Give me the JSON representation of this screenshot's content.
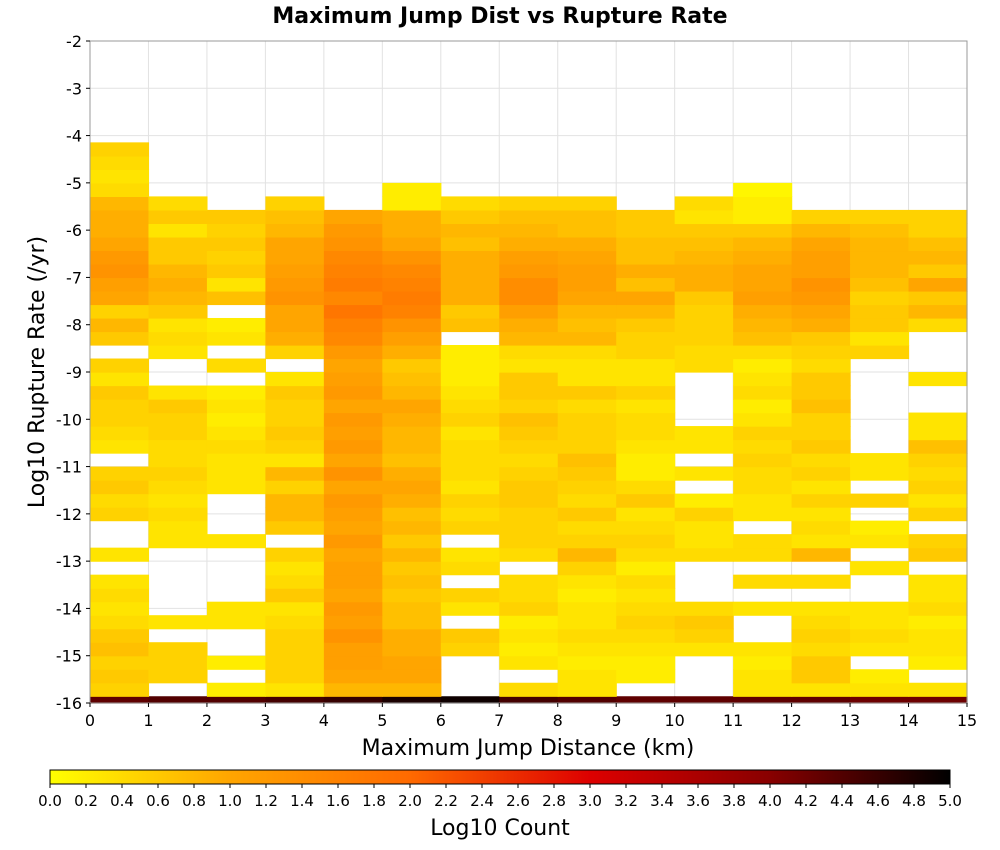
{
  "chart_data": {
    "type": "heatmap",
    "title": "Maximum Jump Dist vs Rupture Rate",
    "xlabel": "Maximum Jump Distance (km)",
    "ylabel": "Log10 Rupture Rate (/yr)",
    "colorbar_label": "Log10 Count",
    "xlim": [
      0,
      15
    ],
    "ylim": [
      -16,
      -2
    ],
    "x_ticks": [
      0,
      1,
      2,
      3,
      4,
      5,
      6,
      7,
      8,
      9,
      10,
      11,
      12,
      13,
      14,
      15
    ],
    "y_ticks": [
      -16,
      -15,
      -14,
      -13,
      -12,
      -11,
      -10,
      -9,
      -8,
      -7,
      -6,
      -5,
      -4,
      -3,
      -2
    ],
    "colorbar_range": [
      0.0,
      5.0
    ],
    "colorbar_ticks": [
      "0.0",
      "0.2",
      "0.4",
      "0.6",
      "0.8",
      "1.0",
      "1.2",
      "1.4",
      "1.6",
      "1.8",
      "2.0",
      "2.2",
      "2.4",
      "2.6",
      "2.8",
      "3.0",
      "3.2",
      "3.4",
      "3.6",
      "3.8",
      "4.0",
      "4.2",
      "4.4",
      "4.6",
      "4.8",
      "5.0"
    ],
    "colormap": [
      "#ffff00",
      "#ffa500",
      "#ff6a00",
      "#dd0000",
      "#880000",
      "#000000"
    ],
    "grid": true,
    "x_bin_width": 1,
    "y_bin_height": 0.2857,
    "y_bin_start": -16.1429,
    "cell_rows_note": "rows ordered from bottom (y=-16) upward; columns x=0..14",
    "cells": [
      [
        4.3,
        4.4,
        4.4,
        4.5,
        4.6,
        4.8,
        4.9,
        4.5,
        4.4,
        4.3,
        4.3,
        4.3,
        4.3,
        4.2,
        4.2
      ],
      [
        0.5,
        null,
        0.2,
        0.3,
        0.8,
        0.8,
        null,
        0.4,
        0.3,
        null,
        null,
        0.3,
        0.3,
        0.3,
        0.3
      ],
      [
        0.6,
        0.5,
        null,
        0.5,
        1.0,
        1.0,
        null,
        null,
        0.3,
        0.2,
        null,
        0.3,
        0.6,
        0.2,
        null
      ],
      [
        0.5,
        0.5,
        0.2,
        0.5,
        1.1,
        1.0,
        null,
        0.3,
        0.2,
        0.2,
        null,
        0.2,
        0.6,
        null,
        0.2
      ],
      [
        0.7,
        0.5,
        null,
        0.5,
        1.1,
        0.9,
        0.5,
        0.2,
        0.3,
        0.3,
        0.3,
        0.3,
        0.4,
        0.3,
        0.3
      ],
      [
        0.6,
        null,
        null,
        0.5,
        1.3,
        0.9,
        0.6,
        0.3,
        0.4,
        0.4,
        0.5,
        null,
        0.5,
        0.4,
        0.3
      ],
      [
        0.4,
        0.3,
        0.3,
        0.4,
        1.1,
        0.7,
        null,
        0.2,
        0.3,
        0.5,
        0.6,
        null,
        0.4,
        0.3,
        0.2
      ],
      [
        0.3,
        null,
        0.3,
        0.3,
        1.2,
        0.7,
        0.3,
        0.5,
        0.3,
        0.4,
        0.4,
        0.3,
        0.3,
        0.3,
        0.4
      ],
      [
        0.4,
        null,
        null,
        0.6,
        1.0,
        0.6,
        0.5,
        0.4,
        0.2,
        0.3,
        null,
        null,
        null,
        null,
        0.3
      ],
      [
        0.3,
        null,
        null,
        0.4,
        1.1,
        0.7,
        null,
        0.4,
        0.3,
        0.4,
        null,
        0.4,
        0.4,
        null,
        0.3
      ],
      [
        null,
        null,
        null,
        0.3,
        1.1,
        0.6,
        0.4,
        null,
        0.5,
        0.2,
        null,
        null,
        null,
        0.3,
        null
      ],
      [
        0.3,
        null,
        null,
        0.5,
        1.0,
        0.8,
        0.3,
        0.4,
        0.8,
        0.4,
        0.4,
        0.4,
        0.8,
        null,
        0.6
      ],
      [
        null,
        0.3,
        0.3,
        null,
        1.2,
        0.6,
        null,
        0.5,
        0.5,
        0.5,
        0.3,
        0.4,
        0.3,
        0.3,
        0.5
      ],
      [
        null,
        0.3,
        null,
        0.6,
        1.0,
        0.8,
        0.5,
        0.5,
        0.4,
        0.4,
        0.3,
        null,
        0.4,
        0.2,
        null
      ],
      [
        0.5,
        0.4,
        null,
        0.8,
        1.1,
        0.7,
        0.4,
        0.5,
        0.6,
        0.3,
        0.5,
        0.3,
        0.3,
        null,
        0.5
      ],
      [
        0.4,
        0.3,
        null,
        0.8,
        1.2,
        0.9,
        0.5,
        0.6,
        0.4,
        0.6,
        0.2,
        0.3,
        0.5,
        0.5,
        0.3
      ],
      [
        0.6,
        0.4,
        0.3,
        0.5,
        1.0,
        1.0,
        0.3,
        0.6,
        0.5,
        0.4,
        null,
        0.4,
        0.3,
        null,
        0.5
      ],
      [
        0.5,
        0.5,
        0.3,
        0.8,
        1.3,
        0.9,
        0.4,
        0.5,
        0.6,
        0.2,
        0.3,
        0.4,
        0.5,
        0.3,
        0.4
      ],
      [
        null,
        0.4,
        0.3,
        0.3,
        1.0,
        0.7,
        0.4,
        0.4,
        0.7,
        0.2,
        null,
        0.5,
        0.4,
        0.3,
        0.5
      ],
      [
        0.3,
        0.4,
        0.4,
        0.5,
        1.2,
        0.8,
        0.4,
        0.5,
        0.5,
        0.3,
        0.3,
        0.4,
        0.6,
        null,
        0.7
      ],
      [
        0.4,
        0.5,
        0.3,
        0.6,
        1.1,
        0.8,
        0.3,
        0.6,
        0.5,
        0.4,
        0.3,
        0.5,
        0.5,
        null,
        0.3
      ],
      [
        0.5,
        0.5,
        0.2,
        0.5,
        1.2,
        0.9,
        0.5,
        0.7,
        0.5,
        0.4,
        null,
        0.3,
        0.5,
        null,
        0.3
      ],
      [
        0.5,
        0.6,
        0.3,
        0.5,
        1.0,
        1.0,
        0.4,
        0.5,
        0.4,
        0.3,
        null,
        0.2,
        0.7,
        null,
        null
      ],
      [
        0.6,
        0.3,
        0.2,
        0.6,
        1.2,
        0.8,
        0.3,
        0.6,
        0.6,
        0.5,
        null,
        0.4,
        0.6,
        null,
        null
      ],
      [
        0.3,
        null,
        null,
        0.3,
        1.1,
        0.7,
        0.2,
        0.6,
        0.3,
        0.3,
        null,
        0.3,
        0.6,
        null,
        0.3
      ],
      [
        0.5,
        null,
        0.4,
        null,
        1.0,
        0.6,
        0.2,
        0.3,
        0.3,
        0.3,
        0.4,
        0.2,
        0.4,
        null,
        null
      ],
      [
        null,
        0.3,
        null,
        0.5,
        1.2,
        0.9,
        0.2,
        0.4,
        0.4,
        0.5,
        0.4,
        0.4,
        0.5,
        0.5,
        null
      ],
      [
        0.6,
        0.4,
        0.3,
        0.9,
        1.5,
        1.1,
        null,
        0.8,
        0.8,
        0.5,
        0.5,
        0.7,
        0.6,
        0.3,
        null
      ],
      [
        0.8,
        0.3,
        0.2,
        1.0,
        1.6,
        1.3,
        0.7,
        0.9,
        0.7,
        0.6,
        0.5,
        0.8,
        0.9,
        0.6,
        0.4
      ],
      [
        0.5,
        0.6,
        null,
        1.0,
        1.8,
        1.6,
        0.6,
        1.1,
        0.8,
        0.8,
        0.5,
        0.9,
        1.0,
        0.6,
        0.8
      ],
      [
        1.0,
        0.8,
        0.7,
        1.3,
        1.5,
        1.7,
        0.9,
        1.4,
        1.0,
        1.0,
        0.6,
        1.1,
        1.2,
        0.5,
        0.6
      ],
      [
        1.1,
        0.9,
        0.3,
        1.2,
        1.7,
        1.6,
        0.9,
        1.4,
        1.1,
        0.7,
        0.9,
        1.0,
        1.3,
        0.7,
        1.0
      ],
      [
        1.3,
        0.8,
        0.6,
        1.1,
        1.6,
        1.5,
        0.9,
        1.2,
        1.1,
        0.9,
        0.9,
        1.0,
        1.1,
        0.8,
        0.6
      ],
      [
        1.2,
        0.6,
        0.5,
        1.0,
        1.5,
        1.3,
        0.9,
        1.1,
        1.0,
        0.7,
        0.8,
        0.9,
        1.1,
        0.8,
        0.8
      ],
      [
        1.0,
        0.6,
        0.6,
        1.0,
        1.3,
        1.0,
        0.7,
        0.9,
        0.9,
        0.7,
        0.7,
        0.8,
        1.0,
        0.8,
        0.7
      ],
      [
        0.9,
        0.3,
        0.5,
        0.8,
        1.2,
        0.9,
        0.8,
        0.8,
        0.7,
        0.6,
        0.6,
        0.6,
        0.8,
        0.7,
        0.5
      ],
      [
        0.9,
        0.6,
        0.6,
        0.7,
        1.0,
        0.9,
        0.6,
        0.7,
        0.7,
        0.6,
        0.3,
        0.2,
        0.5,
        0.5,
        0.5
      ],
      [
        0.8,
        0.4,
        null,
        0.5,
        null,
        0.2,
        0.4,
        0.5,
        0.5,
        null,
        0.4,
        0.2,
        null,
        null,
        null
      ],
      [
        0.4,
        null,
        null,
        null,
        null,
        0.2,
        null,
        null,
        null,
        null,
        null,
        0.1,
        null,
        null,
        null
      ],
      [
        0.3,
        null,
        null,
        null,
        null,
        null,
        null,
        null,
        null,
        null,
        null,
        null,
        null,
        null,
        null
      ],
      [
        0.4,
        null,
        null,
        null,
        null,
        null,
        null,
        null,
        null,
        null,
        null,
        null,
        null,
        null,
        null
      ],
      [
        0.5,
        null,
        null,
        null,
        null,
        null,
        null,
        null,
        null,
        null,
        null,
        null,
        null,
        null,
        null
      ]
    ]
  }
}
